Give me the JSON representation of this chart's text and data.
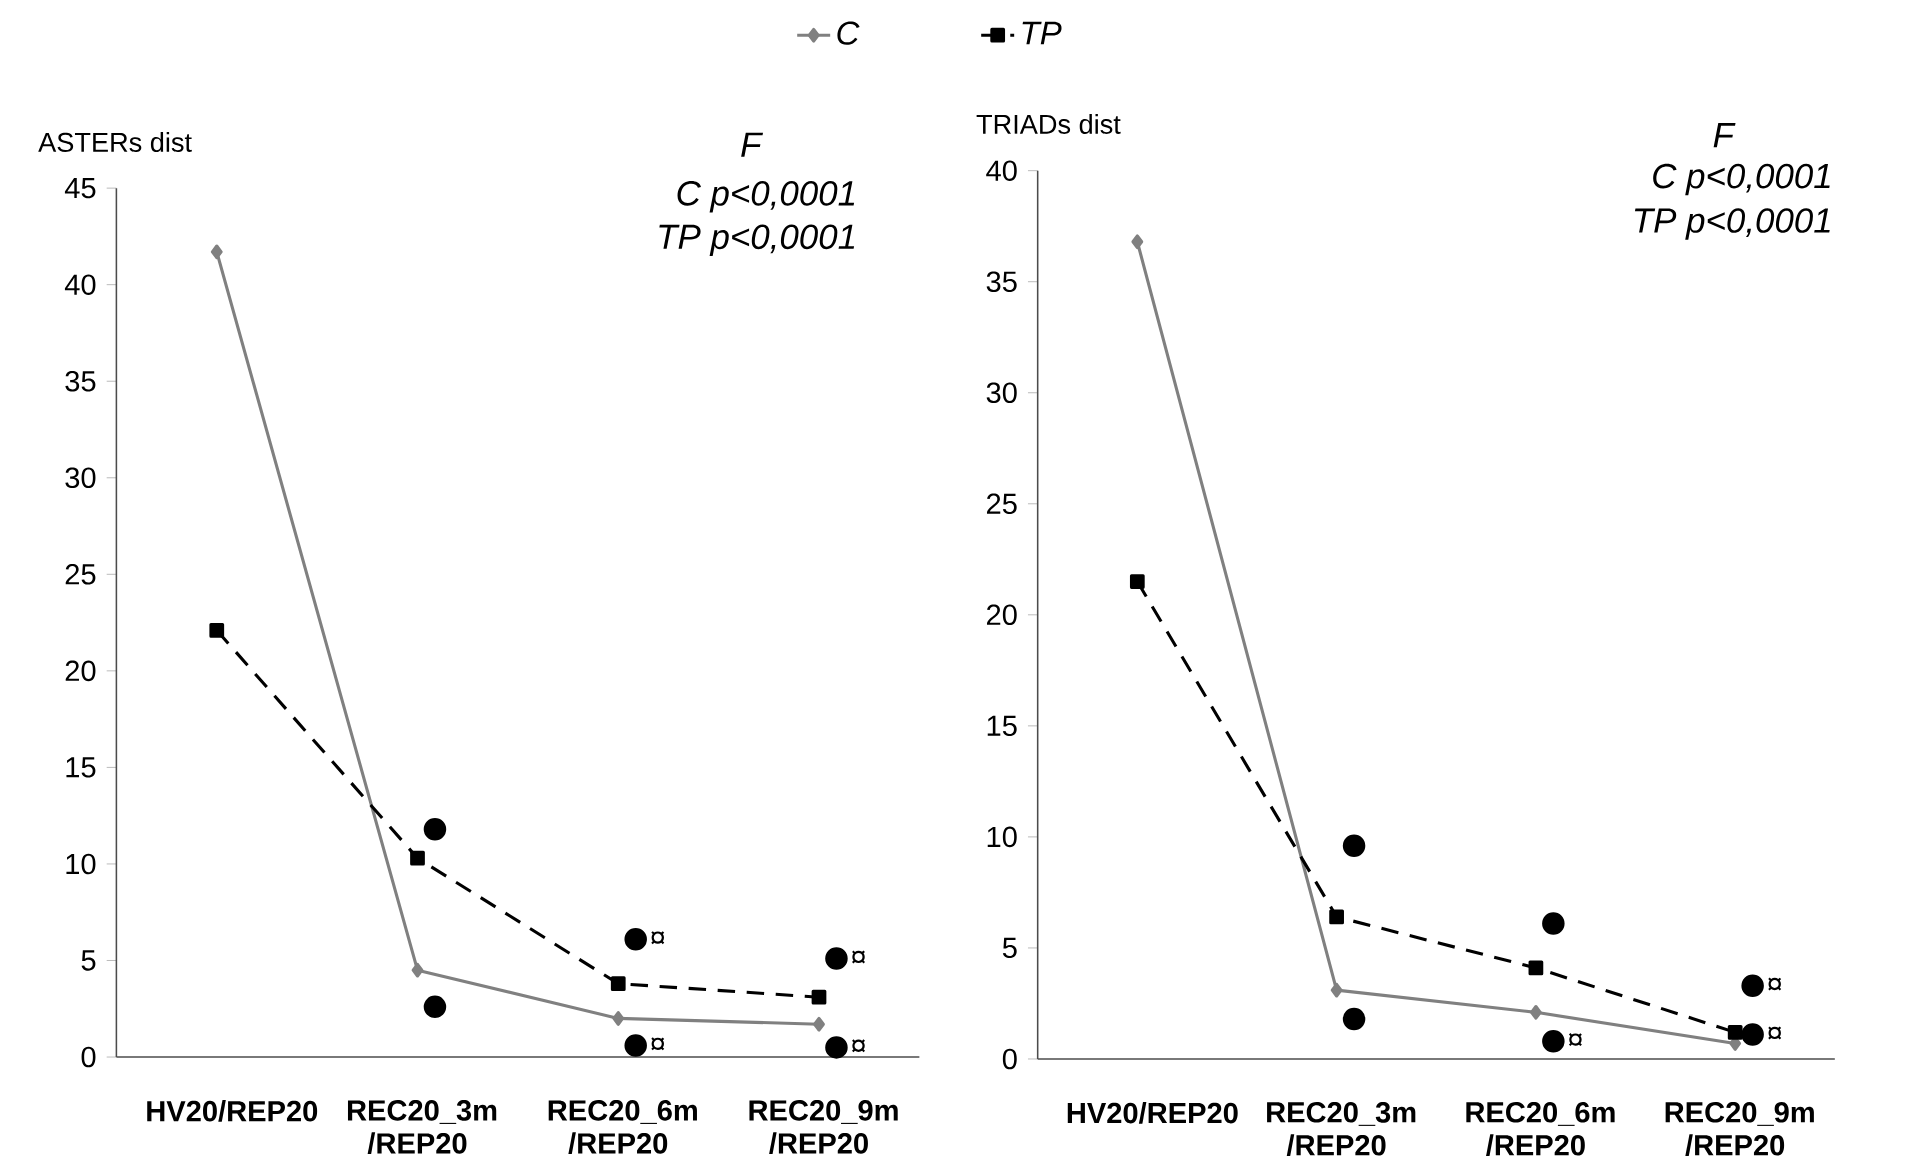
{
  "chart_data": [
    {
      "type": "line",
      "ylabel": "ASTERs dist",
      "categories": [
        "HV20/REP20",
        "REC20_3m /REP20",
        "REC20_6m /REP20",
        "REC20_9m /REP20"
      ],
      "ylim": [
        0,
        45
      ],
      "yticks": [
        0,
        5,
        10,
        15,
        20,
        25,
        30,
        35,
        40,
        45
      ],
      "legend": "top",
      "series": [
        {
          "name": "C",
          "type": "line",
          "color": "#808080",
          "marker": "diamond",
          "line_style": "solid",
          "values": [
            41.7,
            4.5,
            2.0,
            1.7
          ]
        },
        {
          "name": "TP",
          "type": "line",
          "color": "#000000",
          "marker": "square",
          "line_style": "dashed",
          "values": [
            22.1,
            10.3,
            3.8,
            3.1
          ]
        },
        {
          "type": "scatter",
          "color": "#000000",
          "marker": "circle",
          "x": [
            "REC20_3m /REP20",
            "REC20_6m /REP20",
            "REC20_9m /REP20"
          ],
          "values": [
            11.8,
            6.1,
            5.1
          ]
        },
        {
          "type": "scatter",
          "color": "#000000",
          "marker": "circle",
          "x": [
            "REC20_3m /REP20",
            "REC20_6m /REP20",
            "REC20_9m /REP20"
          ],
          "values": [
            2.6,
            0.6,
            0.5
          ]
        }
      ],
      "annotations": [
        "F",
        "C   p<0,0001",
        "TP p<0,0001",
        {
          "text": "¤",
          "x": "REC20_6m /REP20",
          "y": 6.1
        },
        {
          "text": "¤",
          "x": "REC20_6m /REP20",
          "y": 0.6
        },
        {
          "text": "¤",
          "x": "REC20_9m /REP20",
          "y": 5.1
        },
        {
          "text": "¤",
          "x": "REC20_9m /REP20",
          "y": 0.5
        }
      ]
    },
    {
      "type": "line",
      "ylabel": "TRIADs dist",
      "categories": [
        "HV20/REP20",
        "REC20_3m /REP20",
        "REC20_6m /REP20",
        "REC20_9m /REP20"
      ],
      "ylim": [
        0,
        40
      ],
      "yticks": [
        0,
        5,
        10,
        15,
        20,
        25,
        30,
        35,
        40
      ],
      "series": [
        {
          "type": "line",
          "color": "#808080",
          "marker": "diamond",
          "line_style": "solid",
          "values": [
            36.8,
            3.1,
            2.1,
            0.7
          ]
        },
        {
          "type": "line",
          "color": "#000000",
          "marker": "square",
          "line_style": "dashed",
          "values": [
            21.5,
            6.4,
            4.1,
            1.2
          ]
        },
        {
          "type": "scatter",
          "color": "#000000",
          "marker": "circle",
          "x": [
            "REC20_3m /REP20",
            "REC20_6m /REP20",
            "REC20_9m /REP20"
          ],
          "values": [
            9.6,
            6.1,
            3.3
          ]
        },
        {
          "type": "scatter",
          "color": "#000000",
          "marker": "circle",
          "x": [
            "REC20_3m /REP20",
            "REC20_6m /REP20",
            "REC20_9m /REP20"
          ],
          "values": [
            1.8,
            0.8,
            1.1
          ]
        }
      ],
      "annotations": [
        "F",
        "C   p<0,0001",
        "TP p<0,0001",
        {
          "text": "¤",
          "x": "REC20_6m /REP20",
          "y": 0.8
        },
        {
          "text": "¤",
          "x": "REC20_9m /REP20",
          "y": 3.3
        },
        {
          "text": "¤",
          "x": "REC20_9m /REP20",
          "y": 1.1
        }
      ]
    }
  ]
}
